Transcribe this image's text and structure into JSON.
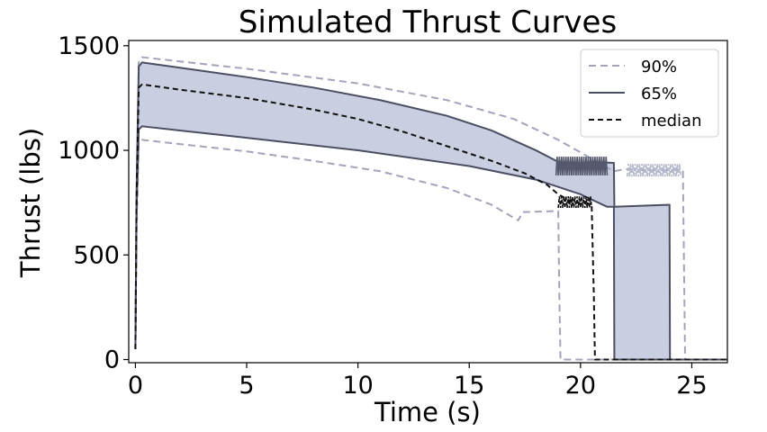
{
  "chart_data": {
    "type": "area",
    "title": "Simulated Thrust Curves",
    "xlabel": "Time (s)",
    "ylabel": "Thrust (lbs)",
    "xlim": [
      -0.3,
      26.6
    ],
    "ylim": [
      -15,
      1525
    ],
    "xticks": [
      0,
      5,
      10,
      15,
      20,
      25
    ],
    "yticks": [
      0,
      500,
      1000,
      1500
    ],
    "grid": false,
    "legend_position": "top-right",
    "colors": {
      "band_fill": "#c9cfe0",
      "p65": "#4a4e63",
      "p90": "#a3a4bc",
      "median": "#111111",
      "oscillation_dark": "#56586e",
      "oscillation_light": "#b5b8cb"
    },
    "series": [
      {
        "name": "90%",
        "style": "dashed",
        "upper": {
          "x": [
            0,
            0.05,
            0.15,
            0.3,
            2,
            5,
            10,
            14,
            17,
            19,
            21.5,
            22,
            23,
            24,
            24.6,
            24.7,
            26.6
          ],
          "y": [
            50,
            700,
            1420,
            1445,
            1425,
            1390,
            1320,
            1240,
            1150,
            1050,
            900,
            910,
            905,
            905,
            910,
            0,
            0
          ]
        },
        "lower": {
          "x": [
            0,
            0.05,
            0.15,
            0.3,
            2,
            5,
            8,
            11,
            14,
            16,
            17.2,
            17.4,
            19,
            19.05,
            19.1,
            26.6
          ],
          "y": [
            50,
            600,
            1040,
            1050,
            1030,
            995,
            950,
            900,
            820,
            740,
            665,
            705,
            710,
            300,
            0,
            0
          ]
        }
      },
      {
        "name": "65%",
        "style": "solid",
        "upper": {
          "x": [
            0,
            0.05,
            0.15,
            0.3,
            2,
            5,
            8,
            11,
            14,
            16,
            18,
            19,
            20,
            20.5,
            21.5,
            21.52,
            24,
            24.02,
            26.6
          ],
          "y": [
            50,
            800,
            1400,
            1420,
            1395,
            1350,
            1300,
            1240,
            1165,
            1095,
            1000,
            945,
            940,
            945,
            940,
            730,
            740,
            0,
            0
          ]
        },
        "lower": {
          "x": [
            0,
            0.05,
            0.15,
            0.3,
            2,
            5,
            10,
            15,
            18,
            19,
            20,
            21.2,
            21.5,
            21.52,
            26.6
          ],
          "y": [
            50,
            700,
            1100,
            1115,
            1095,
            1060,
            1000,
            925,
            860,
            825,
            790,
            730,
            730,
            0,
            0
          ]
        }
      },
      {
        "name": "median",
        "style": "dashed",
        "x": [
          0,
          0.05,
          0.15,
          0.3,
          2,
          5,
          8,
          10,
          12,
          14,
          16,
          17.5,
          18.5,
          19,
          19.5,
          20,
          20.5,
          20.6,
          20.65,
          26.6
        ],
        "y": [
          50,
          750,
          1300,
          1315,
          1290,
          1250,
          1195,
          1150,
          1090,
          1020,
          950,
          890,
          835,
          790,
          760,
          745,
          745,
          300,
          0,
          0
        ]
      }
    ],
    "oscillations": [
      {
        "series": "65%",
        "x_start": 18.9,
        "x_end": 21.2,
        "y_low": 880,
        "y_high": 970
      },
      {
        "series": "90%",
        "x_start": 22.1,
        "x_end": 24.5,
        "y_low": 875,
        "y_high": 935
      },
      {
        "series": "median",
        "x_start": 19.0,
        "x_end": 20.5,
        "y_low": 725,
        "y_high": 780
      }
    ]
  }
}
